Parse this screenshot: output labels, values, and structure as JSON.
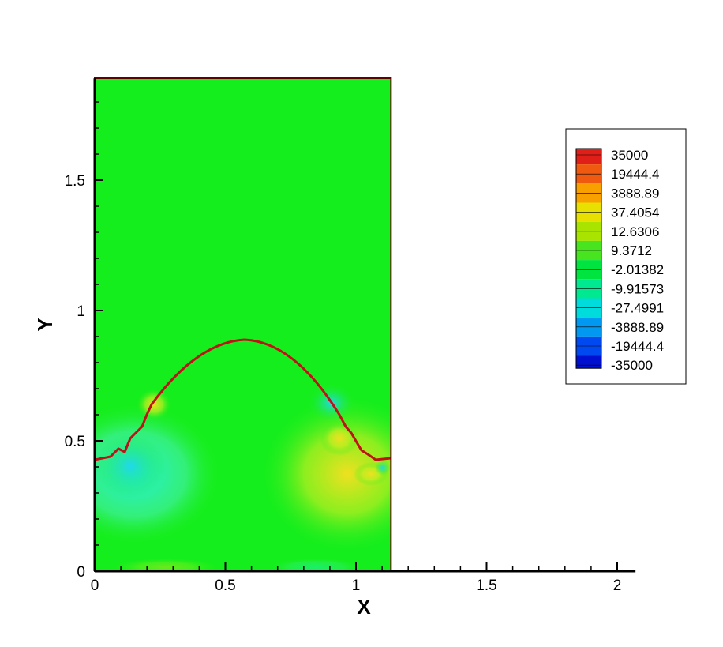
{
  "chart_data": {
    "type": "contour",
    "xlabel": "X",
    "ylabel": "Y",
    "xlim": [
      0,
      2.07
    ],
    "ylim": [
      0,
      1.89
    ],
    "domain_xlim": [
      0,
      1.134
    ],
    "xticks": [
      0,
      0.5,
      1,
      1.5,
      2
    ],
    "yticks": [
      0,
      0.5,
      1,
      1.5
    ],
    "xminorticks": [
      0.1,
      0.2,
      0.3,
      0.4,
      0.6,
      0.7,
      0.8,
      0.9,
      1.1,
      1.2,
      1.3,
      1.4,
      1.6,
      1.7,
      1.8,
      1.9
    ],
    "yminorticks": [
      0.1,
      0.2,
      0.3,
      0.4,
      0.6,
      0.7,
      0.8,
      0.9,
      1.1,
      1.2,
      1.3,
      1.4,
      1.6,
      1.7,
      1.8
    ],
    "legend": {
      "levels": [
        35000,
        19444.4,
        3888.89,
        37.4054,
        12.6306,
        9.3712,
        -2.01382,
        -9.91573,
        -27.4991,
        -3888.89,
        -19444.4,
        -35000
      ],
      "colors": [
        "#e02018",
        "#f05a10",
        "#f8a000",
        "#e8e000",
        "#a8e400",
        "#48e420",
        "#00e440",
        "#00e890",
        "#00dcdc",
        "#0098f0",
        "#0048f0",
        "#0010d0"
      ]
    }
  }
}
